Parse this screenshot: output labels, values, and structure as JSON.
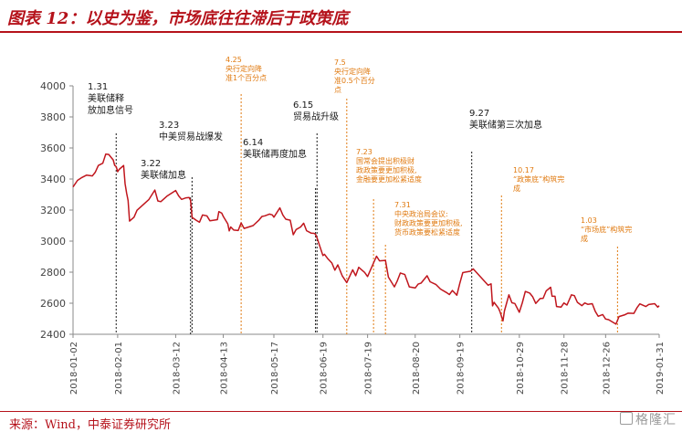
{
  "figure": {
    "title": "图表 12：以史为鉴，市场底往往滞后于政策底",
    "source": "来源：Wind，中泰证券研究所",
    "watermark": "格隆汇"
  },
  "colors": {
    "line": "#c0161d",
    "accent": "#b5121b",
    "annotation_orange": "#e07a10",
    "annotation_black": "#1a1a1a",
    "axis": "#8a8a8a"
  },
  "chart_data": {
    "type": "line",
    "title": "",
    "xlabel": "",
    "ylabel": "",
    "ylim": [
      2400,
      4000
    ],
    "yticks": [
      2400,
      2600,
      2800,
      3000,
      3200,
      3400,
      3600,
      3800,
      4000
    ],
    "xlim": [
      "2018-01-02",
      "2019-01-31"
    ],
    "xticks": [
      "2018-01-02",
      "2018-02-01",
      "2018-03-12",
      "2018-04-13",
      "2018-05-17",
      "2018-06-19",
      "2018-07-19",
      "2018-08-20",
      "2018-09-19",
      "2018-10-29",
      "2018-11-28",
      "2018-12-26",
      "2019-01-31"
    ],
    "grid": false,
    "series": [
      {
        "name": "",
        "points": [
          [
            "2018-01-02",
            3349
          ],
          [
            "2018-01-05",
            3391
          ],
          [
            "2018-01-08",
            3410
          ],
          [
            "2018-01-11",
            3425
          ],
          [
            "2018-01-15",
            3420
          ],
          [
            "2018-01-17",
            3444
          ],
          [
            "2018-01-19",
            3487
          ],
          [
            "2018-01-22",
            3502
          ],
          [
            "2018-01-24",
            3560
          ],
          [
            "2018-01-26",
            3558
          ],
          [
            "2018-01-29",
            3523
          ],
          [
            "2018-01-30",
            3488
          ],
          [
            "2018-01-31",
            3480
          ],
          [
            "2018-02-01",
            3447
          ],
          [
            "2018-02-02",
            3462
          ],
          [
            "2018-02-05",
            3487
          ],
          [
            "2018-02-06",
            3370
          ],
          [
            "2018-02-07",
            3309
          ],
          [
            "2018-02-08",
            3262
          ],
          [
            "2018-02-09",
            3129
          ],
          [
            "2018-02-12",
            3154
          ],
          [
            "2018-02-14",
            3199
          ],
          [
            "2018-02-22",
            3268
          ],
          [
            "2018-02-26",
            3329
          ],
          [
            "2018-02-28",
            3259
          ],
          [
            "2018-03-02",
            3254
          ],
          [
            "2018-03-06",
            3289
          ],
          [
            "2018-03-09",
            3307
          ],
          [
            "2018-03-12",
            3326
          ],
          [
            "2018-03-14",
            3291
          ],
          [
            "2018-03-16",
            3269
          ],
          [
            "2018-03-19",
            3279
          ],
          [
            "2018-03-21",
            3281
          ],
          [
            "2018-03-22",
            3263
          ],
          [
            "2018-03-23",
            3153
          ],
          [
            "2018-03-26",
            3133
          ],
          [
            "2018-03-28",
            3122
          ],
          [
            "2018-03-30",
            3168
          ],
          [
            "2018-04-02",
            3163
          ],
          [
            "2018-04-04",
            3131
          ],
          [
            "2018-04-09",
            3138
          ],
          [
            "2018-04-10",
            3190
          ],
          [
            "2018-04-12",
            3180
          ],
          [
            "2018-04-13",
            3159
          ],
          [
            "2018-04-16",
            3111
          ],
          [
            "2018-04-17",
            3066
          ],
          [
            "2018-04-18",
            3091
          ],
          [
            "2018-04-20",
            3071
          ],
          [
            "2018-04-23",
            3068
          ],
          [
            "2018-04-25",
            3117
          ],
          [
            "2018-04-27",
            3082
          ],
          [
            "2018-05-03",
            3100
          ],
          [
            "2018-05-07",
            3136
          ],
          [
            "2018-05-09",
            3159
          ],
          [
            "2018-05-11",
            3163
          ],
          [
            "2018-05-14",
            3174
          ],
          [
            "2018-05-16",
            3169
          ],
          [
            "2018-05-17",
            3154
          ],
          [
            "2018-05-21",
            3214
          ],
          [
            "2018-05-23",
            3168
          ],
          [
            "2018-05-25",
            3141
          ],
          [
            "2018-05-28",
            3135
          ],
          [
            "2018-05-30",
            3041
          ],
          [
            "2018-06-01",
            3075
          ],
          [
            "2018-06-04",
            3091
          ],
          [
            "2018-06-06",
            3115
          ],
          [
            "2018-06-08",
            3067
          ],
          [
            "2018-06-11",
            3052
          ],
          [
            "2018-06-13",
            3050
          ],
          [
            "2018-06-14",
            3044
          ],
          [
            "2018-06-15",
            3022
          ],
          [
            "2018-06-19",
            2907
          ],
          [
            "2018-06-20",
            2915
          ],
          [
            "2018-06-22",
            2890
          ],
          [
            "2018-06-25",
            2859
          ],
          [
            "2018-06-27",
            2813
          ],
          [
            "2018-06-29",
            2847
          ],
          [
            "2018-07-02",
            2776
          ],
          [
            "2018-07-05",
            2733
          ],
          [
            "2018-07-09",
            2815
          ],
          [
            "2018-07-11",
            2777
          ],
          [
            "2018-07-13",
            2831
          ],
          [
            "2018-07-17",
            2798
          ],
          [
            "2018-07-19",
            2772
          ],
          [
            "2018-07-23",
            2859
          ],
          [
            "2018-07-25",
            2903
          ],
          [
            "2018-07-27",
            2873
          ],
          [
            "2018-07-31",
            2876
          ],
          [
            "2018-08-02",
            2768
          ],
          [
            "2018-08-06",
            2705
          ],
          [
            "2018-08-08",
            2745
          ],
          [
            "2018-08-10",
            2795
          ],
          [
            "2018-08-13",
            2785
          ],
          [
            "2018-08-16",
            2705
          ],
          [
            "2018-08-20",
            2698
          ],
          [
            "2018-08-22",
            2723
          ],
          [
            "2018-08-24",
            2730
          ],
          [
            "2018-08-28",
            2777
          ],
          [
            "2018-08-30",
            2738
          ],
          [
            "2018-09-03",
            2720
          ],
          [
            "2018-09-06",
            2691
          ],
          [
            "2018-09-10",
            2669
          ],
          [
            "2018-09-12",
            2656
          ],
          [
            "2018-09-14",
            2682
          ],
          [
            "2018-09-17",
            2652
          ],
          [
            "2018-09-19",
            2730
          ],
          [
            "2018-09-21",
            2797
          ],
          [
            "2018-09-26",
            2806
          ],
          [
            "2018-09-28",
            2821
          ],
          [
            "2018-10-08",
            2716
          ],
          [
            "2018-10-10",
            2725
          ],
          [
            "2018-10-11",
            2583
          ],
          [
            "2018-10-12",
            2606
          ],
          [
            "2018-10-15",
            2568
          ],
          [
            "2018-10-16",
            2546
          ],
          [
            "2018-10-18",
            2486
          ],
          [
            "2018-10-19",
            2550
          ],
          [
            "2018-10-22",
            2654
          ],
          [
            "2018-10-24",
            2603
          ],
          [
            "2018-10-26",
            2598
          ],
          [
            "2018-10-29",
            2542
          ],
          [
            "2018-10-31",
            2603
          ],
          [
            "2018-11-02",
            2676
          ],
          [
            "2018-11-05",
            2665
          ],
          [
            "2018-11-07",
            2641
          ],
          [
            "2018-11-09",
            2599
          ],
          [
            "2018-11-12",
            2630
          ],
          [
            "2018-11-14",
            2632
          ],
          [
            "2018-11-16",
            2679
          ],
          [
            "2018-11-19",
            2703
          ],
          [
            "2018-11-20",
            2645
          ],
          [
            "2018-11-22",
            2645
          ],
          [
            "2018-11-23",
            2579
          ],
          [
            "2018-11-26",
            2575
          ],
          [
            "2018-11-28",
            2602
          ],
          [
            "2018-11-30",
            2588
          ],
          [
            "2018-12-03",
            2654
          ],
          [
            "2018-12-05",
            2649
          ],
          [
            "2018-12-07",
            2606
          ],
          [
            "2018-12-10",
            2584
          ],
          [
            "2018-12-12",
            2602
          ],
          [
            "2018-12-14",
            2593
          ],
          [
            "2018-12-17",
            2597
          ],
          [
            "2018-12-19",
            2549
          ],
          [
            "2018-12-21",
            2516
          ],
          [
            "2018-12-24",
            2527
          ],
          [
            "2018-12-26",
            2498
          ],
          [
            "2018-12-28",
            2494
          ],
          [
            "2019-01-02",
            2465
          ],
          [
            "2019-01-04",
            2514
          ],
          [
            "2019-01-08",
            2526
          ],
          [
            "2019-01-10",
            2536
          ],
          [
            "2019-01-14",
            2535
          ],
          [
            "2019-01-16",
            2570
          ],
          [
            "2019-01-18",
            2596
          ],
          [
            "2019-01-22",
            2579
          ],
          [
            "2019-01-24",
            2592
          ],
          [
            "2019-01-28",
            2597
          ],
          [
            "2019-01-30",
            2575
          ],
          [
            "2019-01-31",
            2584
          ]
        ]
      }
    ],
    "annotations": [
      {
        "date": "2018-01-31",
        "style": "black",
        "lines": [
          "1.31",
          "美联储释",
          "放加息信号"
        ]
      },
      {
        "date": "2018-03-22",
        "style": "black",
        "lines": [
          "3.22",
          "美联储加息"
        ]
      },
      {
        "date": "2018-03-23",
        "style": "black",
        "lines": [
          "3.23",
          "中美贸易战爆发"
        ]
      },
      {
        "date": "2018-04-25",
        "style": "orange",
        "lines": [
          "4.25",
          "央行定向降",
          "准1个百分点"
        ]
      },
      {
        "date": "2018-06-14",
        "style": "black",
        "lines": [
          "6.14",
          "美联储再度加息"
        ]
      },
      {
        "date": "2018-06-15",
        "style": "black",
        "lines": [
          "6.15",
          "贸易战升级"
        ]
      },
      {
        "date": "2018-07-05",
        "style": "orange",
        "lines": [
          "7.5",
          "央行定向降",
          "准0.5个百分",
          "点"
        ]
      },
      {
        "date": "2018-07-23",
        "style": "orange",
        "lines": [
          "7.23",
          "国常会提出积极财",
          "政政策要更加积极,",
          "金融要更加松紧适度"
        ]
      },
      {
        "date": "2018-07-31",
        "style": "orange",
        "lines": [
          "7.31",
          "中央政治局会议:",
          "财政政策要更加积极,",
          "货币政策要松紧适度"
        ]
      },
      {
        "date": "2018-09-27",
        "style": "black",
        "lines": [
          "9.27",
          "美联储第三次加息"
        ]
      },
      {
        "date": "2018-10-17",
        "style": "orange",
        "lines": [
          "10.17",
          "“政策底”构筑完",
          "成"
        ]
      },
      {
        "date": "2019-01-03",
        "style": "orange",
        "lines": [
          "1.03",
          "“市场底”构筑完",
          "成"
        ]
      }
    ]
  }
}
